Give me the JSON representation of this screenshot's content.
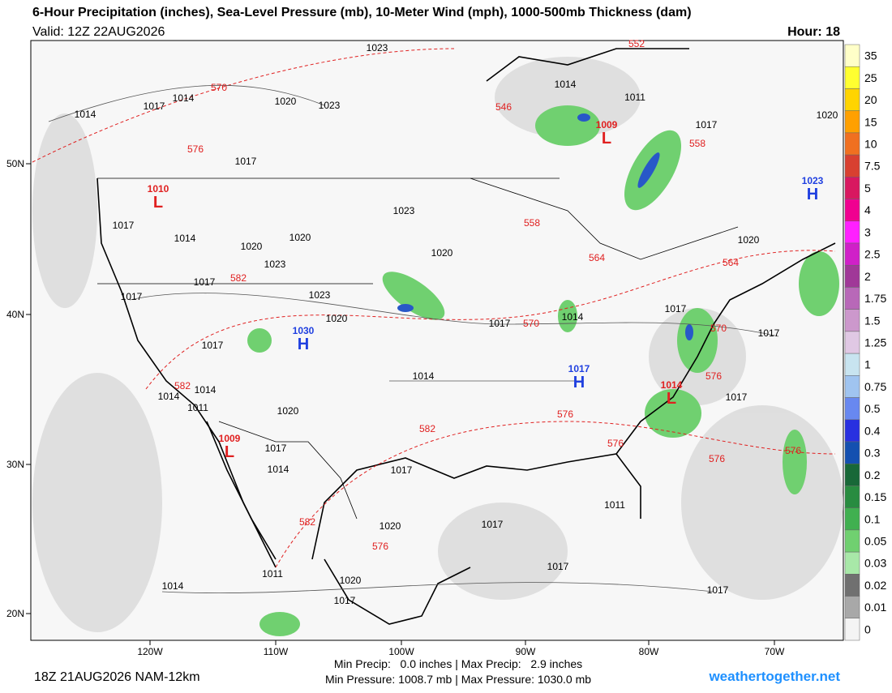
{
  "header": {
    "title": "6-Hour Precipitation (inches), Sea-Level Pressure (mb), 10-Meter Wind (mph), 1000-500mb Thickness (dam)",
    "valid": "Valid: 12Z 22AUG2026",
    "hour": "Hour: 18"
  },
  "axes": {
    "lon_labels": [
      "120W",
      "110W",
      "100W",
      "90W",
      "80W",
      "70W"
    ],
    "lat_labels": [
      "50N",
      "40N",
      "30N",
      "20N"
    ]
  },
  "isobar_labels": [
    1014,
    1014,
    1014,
    1014,
    1014,
    1014,
    1014,
    1017,
    1017,
    1017,
    1017,
    1017,
    1017,
    1017,
    1017,
    1017,
    1017,
    1017,
    1017,
    1017,
    1017,
    1017,
    1017,
    1020,
    1020,
    1020,
    1020,
    1020,
    1020,
    1020,
    1020,
    1020,
    1020,
    1023,
    1023,
    1023,
    1023,
    1023,
    1011,
    1011,
    1011,
    1011,
    1014,
    1014,
    1014,
    1017
  ],
  "thickness_labels": [
    570,
    570,
    570,
    576,
    576,
    576,
    576,
    576,
    576,
    576,
    582,
    582,
    582,
    582,
    546,
    552,
    558,
    558,
    564,
    564
  ],
  "centers": [
    {
      "letter": "L",
      "value": 1010
    },
    {
      "letter": "L",
      "value": 1009
    },
    {
      "letter": "L",
      "value": 1014
    },
    {
      "letter": "L",
      "value": 1009
    },
    {
      "letter": "H",
      "value": 1030
    },
    {
      "letter": "H",
      "value": 1017
    },
    {
      "letter": "H",
      "value": 1023
    }
  ],
  "colorbar": [
    {
      "label": "35",
      "color": "#ffffc8"
    },
    {
      "label": "25",
      "color": "#ffff30"
    },
    {
      "label": "20",
      "color": "#ffd400"
    },
    {
      "label": "15",
      "color": "#ffa000"
    },
    {
      "label": "10",
      "color": "#f07020"
    },
    {
      "label": "7.5",
      "color": "#d84030"
    },
    {
      "label": "5",
      "color": "#d81860"
    },
    {
      "label": "4",
      "color": "#f00090"
    },
    {
      "label": "3",
      "color": "#ff20ff"
    },
    {
      "label": "2.5",
      "color": "#d020c8"
    },
    {
      "label": "2",
      "color": "#a03898"
    },
    {
      "label": "1.75",
      "color": "#b868b8"
    },
    {
      "label": "1.5",
      "color": "#cc98cc"
    },
    {
      "label": "1.25",
      "color": "#e0c8e4"
    },
    {
      "label": "1",
      "color": "#c8e4f0"
    },
    {
      "label": "0.75",
      "color": "#a0c4f0"
    },
    {
      "label": "0.5",
      "color": "#6888f0"
    },
    {
      "label": "0.4",
      "color": "#2830e0"
    },
    {
      "label": "0.3",
      "color": "#1450b0"
    },
    {
      "label": "0.2",
      "color": "#186838"
    },
    {
      "label": "0.15",
      "color": "#288c40"
    },
    {
      "label": "0.1",
      "color": "#40b050"
    },
    {
      "label": "0.05",
      "color": "#70d070"
    },
    {
      "label": "0.03",
      "color": "#a8e8a8"
    },
    {
      "label": "0.02",
      "color": "#707070"
    },
    {
      "label": "0.01",
      "color": "#a8a8a8"
    },
    {
      "label": "0",
      "color": "#f4f4f4"
    }
  ],
  "footer": {
    "run": "18Z 21AUG2026 NAM-12km",
    "precip": "Min Precip:   0.0 inches | Max Precip:   2.9 inches",
    "pressure": "Min Pressure: 1008.7 mb | Max Pressure: 1030.0 mb",
    "site": "weathertogether.net"
  }
}
